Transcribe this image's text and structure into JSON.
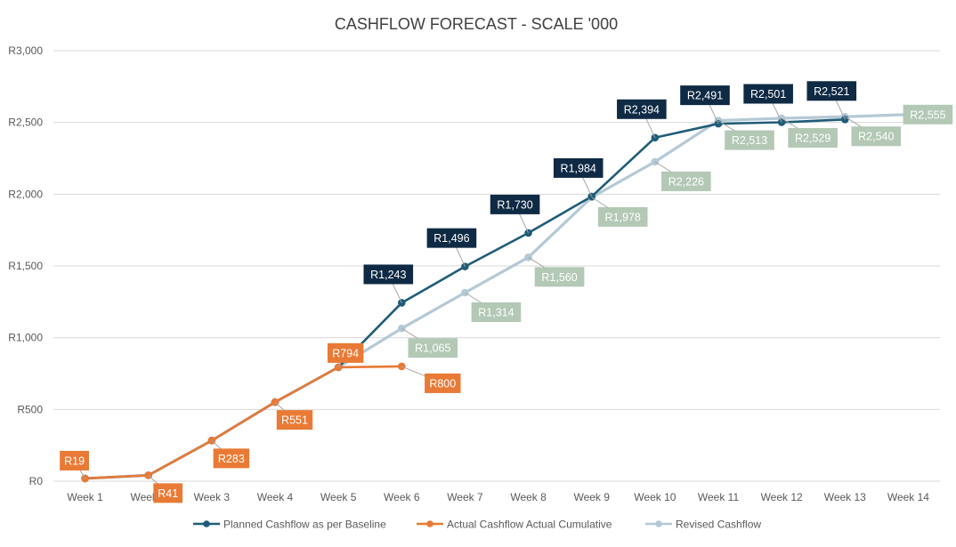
{
  "chart_data": {
    "type": "line",
    "title": "CASHFLOW FORECAST - SCALE '000",
    "xlabel": "",
    "ylabel": "",
    "categories": [
      "Week 1",
      "Week 2",
      "Week 3",
      "Week 4",
      "Week 5",
      "Week 6",
      "Week 7",
      "Week 8",
      "Week 9",
      "Week 10",
      "Week 11",
      "Week 12",
      "Week 13",
      "Week 14"
    ],
    "ylim": [
      0,
      3000
    ],
    "yticks": [
      0,
      500,
      1000,
      1500,
      2000,
      2500,
      3000
    ],
    "ytick_labels": [
      "R0",
      "R500",
      "R1,000",
      "R1,500",
      "R2,000",
      "R2,500",
      "R3,000"
    ],
    "grid": true,
    "legend_position": "bottom",
    "series": [
      {
        "name": "Planned Cashflow as per Baseline",
        "color": "#1f5c78",
        "values": [
          19,
          41,
          283,
          551,
          794,
          1243,
          1496,
          1730,
          1984,
          2394,
          2491,
          2501,
          2521,
          null
        ],
        "labels": [
          null,
          null,
          null,
          null,
          null,
          "R1,243",
          "R1,496",
          "R1,730",
          "R1,984",
          "R2,394",
          "R2,491",
          "R2,501",
          "R2,521",
          null
        ]
      },
      {
        "name": "Actual Cashflow Actual Cumulative",
        "color": "#e97a35",
        "values": [
          19,
          41,
          283,
          551,
          794,
          800,
          null,
          null,
          null,
          null,
          null,
          null,
          null,
          null
        ],
        "labels": [
          "R19",
          "R41",
          "R283",
          "R551",
          "R794",
          "R800",
          null,
          null,
          null,
          null,
          null,
          null,
          null,
          null
        ]
      },
      {
        "name": "Revised Cashflow",
        "color": "#b4c9d6",
        "values": [
          19,
          41,
          283,
          551,
          794,
          1065,
          1314,
          1560,
          1978,
          2226,
          2513,
          2529,
          2540,
          2555
        ],
        "labels": [
          null,
          null,
          null,
          null,
          null,
          "R1,065",
          "R1,314",
          "R1,560",
          "R1,978",
          "R2,226",
          "R2,513",
          "R2,529",
          "R2,540",
          "R2,555"
        ]
      }
    ],
    "label_colors": {
      "planned": "#0f2a44",
      "actual": "#e97a35",
      "revised": "#b3c8b5",
      "label_text": "#ffffff"
    }
  }
}
